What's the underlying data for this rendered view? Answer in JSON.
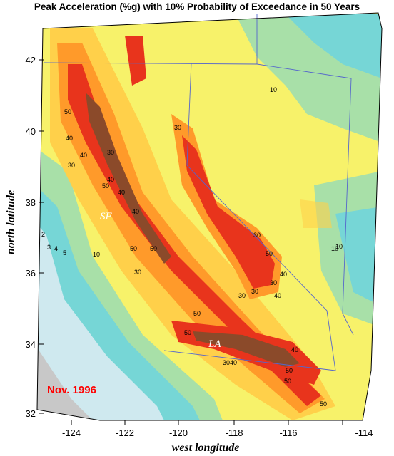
{
  "title": "Peak Acceleration (%g) with 10% Probability of Exceedance in 50 Years",
  "axes": {
    "x_title": "west longitude",
    "y_title": "north latitude",
    "x_ticks": [
      "-124",
      "-122",
      "-120",
      "-118",
      "-116",
      "-114"
    ],
    "y_ticks": [
      "42",
      "40",
      "38",
      "36",
      "34",
      "32"
    ]
  },
  "cities": [
    {
      "name": "SF"
    },
    {
      "name": "LA"
    }
  ],
  "date_stamp": "Nov. 1996",
  "contour_labels": [
    "10",
    "30",
    "50",
    "40",
    "40",
    "30",
    "40",
    "30",
    "50",
    "40",
    "50",
    "30",
    "40",
    "50",
    "10",
    "30",
    "10",
    "50",
    "30",
    "30",
    "40",
    "50",
    "50",
    "50",
    "50",
    "40",
    "3040",
    "50",
    "2",
    "3",
    "4",
    "5",
    "10",
    "30",
    "40"
  ],
  "legend_colors": {
    "very_low": "#cfe9ef",
    "low": "#76d6d6",
    "low_mid": "#a8e0a8",
    "mid": "#f7f26a",
    "mid_high": "#ffd04a",
    "high": "#ff9a2a",
    "very_high": "#e8341c",
    "extreme": "#8b4a2a",
    "ocean_gray": "#c8c8c8"
  }
}
